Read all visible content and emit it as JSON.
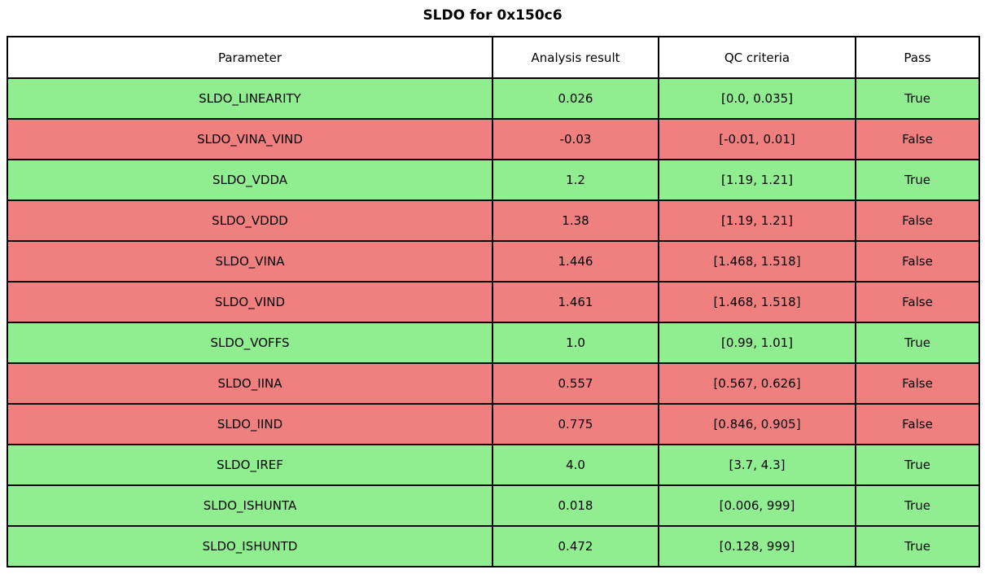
{
  "title": "SLDO for 0x150c6",
  "colors": {
    "pass_row": "#90EE90",
    "fail_row": "#F08080",
    "header_bg": "#FFFFFF",
    "border": "#000000",
    "text": "#000000"
  },
  "chart_data": {
    "type": "table",
    "title": "SLDO for 0x150c6",
    "columns": [
      "Parameter",
      "Analysis result",
      "QC criteria",
      "Pass"
    ],
    "rows": [
      {
        "parameter": "SLDO_LINEARITY",
        "result": "0.026",
        "criteria": "[0.0, 0.035]",
        "pass": "True"
      },
      {
        "parameter": "SLDO_VINA_VIND",
        "result": "-0.03",
        "criteria": "[-0.01, 0.01]",
        "pass": "False"
      },
      {
        "parameter": "SLDO_VDDA",
        "result": "1.2",
        "criteria": "[1.19, 1.21]",
        "pass": "True"
      },
      {
        "parameter": "SLDO_VDDD",
        "result": "1.38",
        "criteria": "[1.19, 1.21]",
        "pass": "False"
      },
      {
        "parameter": "SLDO_VINA",
        "result": "1.446",
        "criteria": "[1.468, 1.518]",
        "pass": "False"
      },
      {
        "parameter": "SLDO_VIND",
        "result": "1.461",
        "criteria": "[1.468, 1.518]",
        "pass": "False"
      },
      {
        "parameter": "SLDO_VOFFS",
        "result": "1.0",
        "criteria": "[0.99, 1.01]",
        "pass": "True"
      },
      {
        "parameter": "SLDO_IINA",
        "result": "0.557",
        "criteria": "[0.567, 0.626]",
        "pass": "False"
      },
      {
        "parameter": "SLDO_IIND",
        "result": "0.775",
        "criteria": "[0.846, 0.905]",
        "pass": "False"
      },
      {
        "parameter": "SLDO_IREF",
        "result": "4.0",
        "criteria": "[3.7, 4.3]",
        "pass": "True"
      },
      {
        "parameter": "SLDO_ISHUNTA",
        "result": "0.018",
        "criteria": "[0.006, 999]",
        "pass": "True"
      },
      {
        "parameter": "SLDO_ISHUNTD",
        "result": "0.472",
        "criteria": "[0.128, 999]",
        "pass": "True"
      }
    ]
  }
}
